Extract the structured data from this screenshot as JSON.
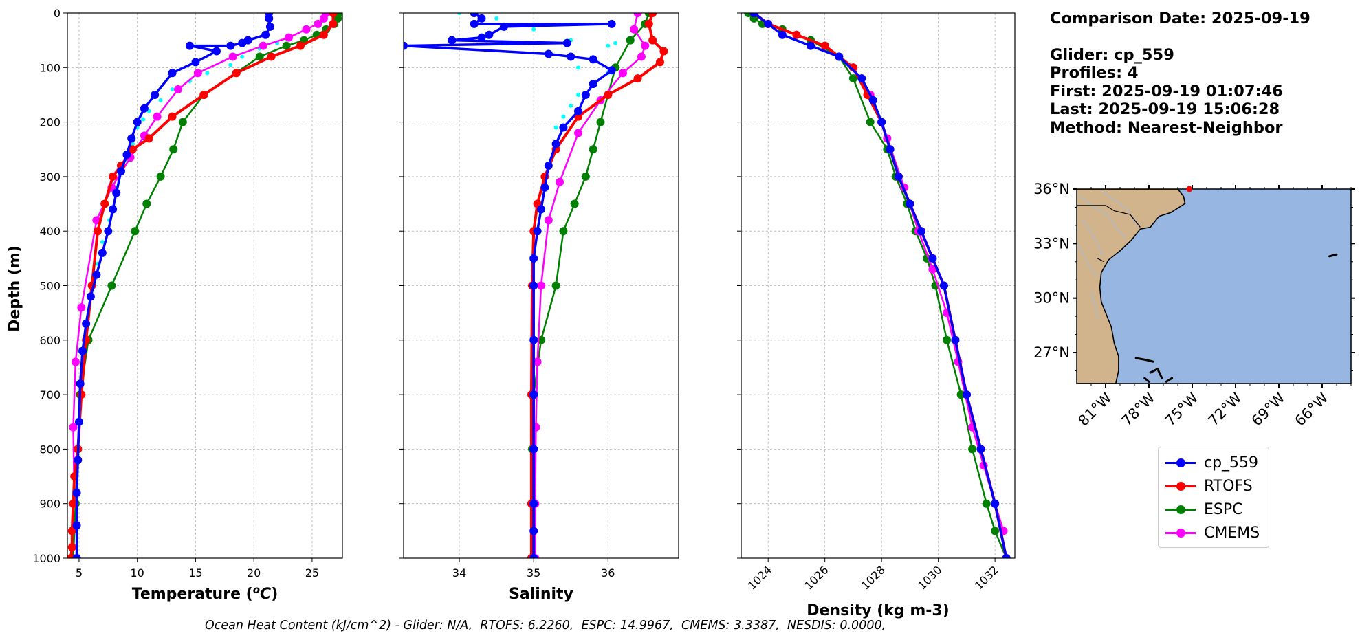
{
  "info": {
    "comparison_date": "Comparison Date: 2025-09-19",
    "glider": "Glider: cp_559",
    "profiles": "Profiles: 4",
    "first": "First: 2025-09-19 01:07:46",
    "last": "Last: 2025-09-19 15:06:28",
    "method": "Method: Nearest-Neighbor"
  },
  "footer": {
    "ohc_text": "Ocean Heat Content (kJ/cm^2) - Glider: N/A,  RTOFS: 6.2260,  ESPC: 14.9967,  CMEMS: 3.3387,  NESDIS: 0.0000,"
  },
  "colors": {
    "glider": "#0000ff",
    "glider_raw": "#00ffff",
    "rtofs": "#ff0000",
    "espc": "#008000",
    "cmems": "#ff00ff",
    "land": "#d2b48c",
    "ocean": "#97b6e1"
  },
  "legend": [
    {
      "label": "cp_559",
      "color": "#0000ff"
    },
    {
      "label": "RTOFS",
      "color": "#ff0000"
    },
    {
      "label": "ESPC",
      "color": "#008000"
    },
    {
      "label": "CMEMS",
      "color": "#ff00ff"
    }
  ],
  "chart_data": [
    {
      "type": "line",
      "xlabel": "Temperature (°C)",
      "ylabel": "Depth (m)",
      "xlim": [
        4,
        27.6
      ],
      "ylim": [
        1000,
        0
      ],
      "xticks": [
        5,
        10,
        15,
        20,
        25
      ],
      "yticks": [
        0,
        100,
        200,
        300,
        400,
        500,
        600,
        700,
        800,
        900,
        1000
      ],
      "grid": true,
      "series": [
        {
          "name": "cp_559",
          "color": "#0000ff",
          "x": [
            21.3,
            21.3,
            21.4,
            21.0,
            19.5,
            19.0,
            18.0,
            14.5,
            16.8,
            15.0,
            13.0,
            11.5,
            10.6,
            10.0,
            9.5,
            9.1,
            8.6,
            8.2,
            7.9,
            7.5,
            7.0,
            6.5,
            6.0,
            5.6,
            5.3,
            5.1,
            5.0,
            4.9,
            4.8,
            4.8,
            4.8
          ],
          "y": [
            0,
            10,
            25,
            40,
            50,
            55,
            60,
            60,
            70,
            90,
            110,
            150,
            175,
            200,
            230,
            260,
            290,
            330,
            360,
            400,
            440,
            480,
            520,
            570,
            620,
            680,
            750,
            820,
            880,
            940,
            1000
          ]
        },
        {
          "name": "RTOFS",
          "color": "#ff0000",
          "x": [
            26.8,
            26.8,
            26.0,
            24.0,
            21.5,
            18.5,
            15.7,
            13.0,
            11.0,
            9.6,
            8.6,
            7.9,
            7.2,
            6.6,
            6.1,
            5.6,
            5.2,
            4.9,
            4.6,
            4.5,
            4.4,
            4.4,
            4.3
          ],
          "y": [
            0,
            20,
            40,
            60,
            80,
            110,
            150,
            190,
            230,
            250,
            280,
            300,
            350,
            400,
            500,
            600,
            700,
            800,
            850,
            900,
            950,
            980,
            1000
          ]
        },
        {
          "name": "ESPC",
          "color": "#008000",
          "x": [
            27.3,
            27.2,
            26.9,
            26.2,
            25.4,
            24.3,
            22.8,
            20.5,
            15.7,
            13.9,
            13.1,
            12.0,
            10.8,
            9.8,
            7.8,
            5.8,
            5.1,
            4.9,
            4.7,
            4.5
          ],
          "y": [
            0,
            10,
            20,
            30,
            40,
            50,
            60,
            80,
            150,
            200,
            250,
            300,
            350,
            400,
            500,
            600,
            700,
            800,
            900,
            1000
          ]
        },
        {
          "name": "CMEMS",
          "color": "#ff00ff",
          "x": [
            26.2,
            26.0,
            25.5,
            24.5,
            23.0,
            20.8,
            18.2,
            15.2,
            13.5,
            11.7,
            10.6,
            9.4,
            7.8,
            6.5,
            5.2,
            4.7,
            4.5,
            4.6
          ],
          "y": [
            0,
            10,
            20,
            30,
            45,
            60,
            80,
            110,
            140,
            190,
            225,
            265,
            320,
            380,
            540,
            640,
            760,
            900
          ]
        }
      ],
      "raw_profile": {
        "name": "cp_559 raw",
        "color": "#00ffff",
        "x": [
          22.0,
          20.5,
          19.0,
          18.0,
          16.0,
          14.5,
          13.0,
          12.0,
          11.0,
          10.5,
          10.0,
          9.6,
          9.0,
          8.2,
          7.6,
          7.0,
          6.6
        ],
        "y": [
          55,
          65,
          80,
          95,
          110,
          125,
          140,
          160,
          180,
          195,
          210,
          240,
          270,
          320,
          380,
          420,
          460
        ]
      }
    },
    {
      "type": "line",
      "xlabel": "Salinity",
      "ylabel": "",
      "xlim": [
        33.25,
        36.95
      ],
      "ylim": [
        1000,
        0
      ],
      "xticks": [
        34,
        35,
        36
      ],
      "grid": true,
      "series": [
        {
          "name": "cp_559",
          "color": "#0000ff",
          "x": [
            34.2,
            34.3,
            34.2,
            36.05,
            34.6,
            34.4,
            34.3,
            33.9,
            35.45,
            33.25,
            35.2,
            35.5,
            35.8,
            36.05,
            35.8,
            35.7,
            35.6,
            35.4,
            35.3,
            35.2,
            35.15,
            35.1,
            35.05,
            35.0,
            35.0,
            35.0,
            35.0,
            35.0,
            35.0,
            35.0,
            35.0
          ],
          "y": [
            0,
            10,
            20,
            20,
            25,
            40,
            45,
            50,
            55,
            60,
            75,
            80,
            85,
            105,
            130,
            150,
            180,
            210,
            240,
            280,
            320,
            360,
            400,
            450,
            500,
            600,
            700,
            800,
            900,
            950,
            1000
          ]
        },
        {
          "name": "RTOFS",
          "color": "#ff0000",
          "x": [
            36.6,
            36.55,
            36.6,
            36.75,
            36.7,
            36.4,
            36.0,
            35.6,
            35.3,
            35.15,
            35.05,
            35.0,
            34.98,
            34.97,
            34.97,
            34.97
          ],
          "y": [
            0,
            20,
            50,
            70,
            90,
            120,
            150,
            190,
            250,
            300,
            350,
            400,
            500,
            700,
            900,
            1000
          ]
        },
        {
          "name": "ESPC",
          "color": "#008000",
          "x": [
            36.55,
            36.5,
            36.3,
            36.1,
            36.0,
            35.9,
            35.8,
            35.7,
            35.55,
            35.4,
            35.3,
            35.1,
            35.0,
            34.98,
            34.97,
            34.97
          ],
          "y": [
            0,
            20,
            50,
            100,
            150,
            200,
            250,
            300,
            350,
            400,
            500,
            600,
            700,
            800,
            900,
            1000
          ]
        },
        {
          "name": "CMEMS",
          "color": "#ff00ff",
          "x": [
            36.4,
            36.35,
            36.5,
            36.45,
            36.2,
            35.9,
            35.6,
            35.35,
            35.2,
            35.1,
            35.05,
            35.03,
            35.02,
            35.02
          ],
          "y": [
            0,
            30,
            60,
            80,
            110,
            160,
            220,
            310,
            380,
            500,
            640,
            760,
            900,
            1000
          ]
        }
      ],
      "raw_profile": {
        "name": "cp_559 raw",
        "color": "#00ffff",
        "x": [
          34.0,
          34.5,
          35.0,
          35.5,
          36.0,
          36.1,
          35.5,
          35.6,
          36.0,
          35.8,
          35.6,
          35.5,
          35.4,
          35.3
        ],
        "y": [
          0,
          10,
          30,
          50,
          60,
          55,
          80,
          100,
          110,
          130,
          150,
          170,
          190,
          210
        ]
      }
    },
    {
      "type": "line",
      "xlabel": "Density (kg m-3)",
      "ylabel": "",
      "xlim": [
        1023.05,
        1032.7
      ],
      "ylim": [
        1000,
        0
      ],
      "xticks": [
        1024,
        1026,
        1028,
        1030,
        1032
      ],
      "grid": true,
      "series": [
        {
          "name": "cp_559",
          "color": "#0000ff",
          "x": [
            1023.5,
            1024.0,
            1024.5,
            1025.5,
            1026.5,
            1027.3,
            1027.7,
            1028.0,
            1028.3,
            1028.6,
            1029.0,
            1029.4,
            1029.8,
            1030.2,
            1030.6,
            1031.0,
            1031.5,
            1032.0,
            1032.4
          ],
          "y": [
            0,
            20,
            40,
            60,
            80,
            120,
            160,
            200,
            250,
            300,
            350,
            400,
            450,
            500,
            600,
            700,
            800,
            900,
            1000
          ]
        },
        {
          "name": "RTOFS",
          "color": "#ff0000",
          "x": [
            1023.5,
            1024.0,
            1025.0,
            1026.0,
            1027.0,
            1027.5,
            1028.0,
            1028.3,
            1028.6,
            1029.0,
            1029.4,
            1029.8,
            1030.2,
            1030.6,
            1031.0,
            1031.5,
            1032.0,
            1032.4
          ],
          "y": [
            0,
            20,
            40,
            60,
            100,
            150,
            200,
            250,
            300,
            350,
            400,
            450,
            500,
            600,
            700,
            800,
            900,
            1000
          ]
        },
        {
          "name": "ESPC",
          "color": "#008000",
          "x": [
            1023.3,
            1023.5,
            1023.8,
            1024.5,
            1025.5,
            1026.5,
            1027.0,
            1027.6,
            1028.2,
            1028.5,
            1028.9,
            1029.2,
            1029.6,
            1029.9,
            1030.3,
            1030.8,
            1031.2,
            1031.7,
            1032.0,
            1032.4
          ],
          "y": [
            0,
            10,
            20,
            30,
            50,
            80,
            120,
            200,
            250,
            300,
            350,
            400,
            450,
            500,
            600,
            700,
            800,
            900,
            950,
            1000
          ]
        },
        {
          "name": "CMEMS",
          "color": "#ff00ff",
          "x": [
            1023.5,
            1024.0,
            1025.0,
            1026.0,
            1027.0,
            1027.6,
            1028.2,
            1028.8,
            1029.3,
            1029.8,
            1030.3,
            1030.7,
            1031.2,
            1031.6,
            1032.0,
            1032.3
          ],
          "y": [
            0,
            20,
            40,
            60,
            100,
            150,
            230,
            320,
            400,
            470,
            550,
            640,
            760,
            830,
            900,
            950
          ]
        }
      ]
    },
    {
      "type": "map",
      "lon_range": [
        -83,
        -64
      ],
      "lat_range": [
        25.3,
        36.0
      ],
      "xticks": [
        "81°W",
        "78°W",
        "75°W",
        "72°W",
        "69°W",
        "66°W"
      ],
      "yticks": [
        "36°N",
        "33°N",
        "30°N",
        "27°N"
      ],
      "marker": {
        "lon": -75.2,
        "lat": 36.0,
        "color": "#ff0000"
      }
    }
  ]
}
